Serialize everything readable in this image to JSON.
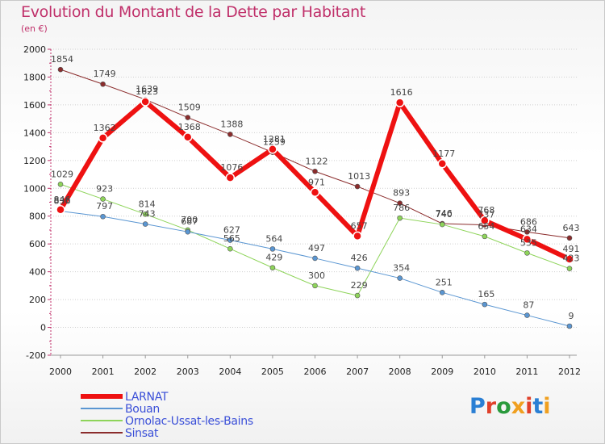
{
  "header": {
    "title": "Evolution du Montant de la Dette par Habitant",
    "subtitle": "(en €)"
  },
  "logo": {
    "text": "Proxiti",
    "letter_colors": [
      "#2a7fd4",
      "#e0402a",
      "#2a9a3c",
      "#f0a020",
      "#e0402a",
      "#2a7fd4",
      "#f0a020"
    ]
  },
  "chart_data": {
    "type": "line",
    "title": "Evolution du Montant de la Dette par Habitant",
    "subtitle": "(en €)",
    "xlabel": "",
    "ylabel": "",
    "x": [
      "2000",
      "2001",
      "2002",
      "2003",
      "2004",
      "2005",
      "2006",
      "2007",
      "2008",
      "2009",
      "2010",
      "2011",
      "2012"
    ],
    "ylim": [
      -200,
      2000
    ],
    "yticks": [
      "-200",
      "0",
      "200",
      "400",
      "600",
      "800",
      "1000",
      "1200",
      "1400",
      "1600",
      "1800",
      "2000"
    ],
    "grid": "horizontal dotted",
    "legend_position": "bottom-left",
    "series": [
      {
        "name": "Sinsat",
        "color": "#8b2c2c",
        "width": 1,
        "values": [
          1854,
          1749,
          1639,
          1509,
          1388,
          1259,
          1122,
          1013,
          893,
          746,
          737,
          686,
          643
        ],
        "labels": [
          "1854",
          "1749",
          "1639",
          "1509",
          "1388",
          "1259",
          "1122",
          "1013",
          "893",
          "746",
          "737",
          "686",
          "643"
        ]
      },
      {
        "name": "Ornolac-Ussat-les-Bains",
        "color": "#8ed45a",
        "width": 1,
        "values": [
          1029,
          923,
          814,
          700,
          565,
          429,
          300,
          229,
          786,
          740,
          654,
          535,
          423
        ],
        "labels": [
          "1029",
          "923",
          "814",
          "700",
          "565",
          "429",
          "300",
          "229",
          "786",
          "740",
          "654",
          "535",
          "423"
        ]
      },
      {
        "name": "Bouan",
        "color": "#5a96d2",
        "width": 1,
        "values": [
          836,
          797,
          743,
          687,
          627,
          564,
          497,
          426,
          354,
          251,
          165,
          87,
          9
        ],
        "labels": [
          "836",
          "797",
          "743",
          "687",
          "627",
          "564",
          "497",
          "426",
          "354",
          "251",
          "165",
          "87",
          "9"
        ]
      },
      {
        "name": "LARNAT",
        "color": "#ee1111",
        "width": 6,
        "values": [
          846,
          1362,
          1623,
          1368,
          1076,
          1281,
          971,
          657,
          1616,
          1177,
          768,
          634,
          491
        ],
        "labels": [
          "846",
          "1362",
          "1623",
          "1368",
          "1076",
          "1281",
          "971",
          "657",
          "1616",
          "1177",
          "768",
          "634",
          "491"
        ]
      }
    ]
  },
  "legend": {
    "items": [
      {
        "name": "LARNAT",
        "color": "#ee1111",
        "width": 6
      },
      {
        "name": "Bouan",
        "color": "#5a96d2",
        "width": 1
      },
      {
        "name": "Ornolac-Ussat-les-Bains",
        "color": "#8ed45a",
        "width": 1
      },
      {
        "name": "Sinsat",
        "color": "#8b2c2c",
        "width": 1
      }
    ]
  }
}
